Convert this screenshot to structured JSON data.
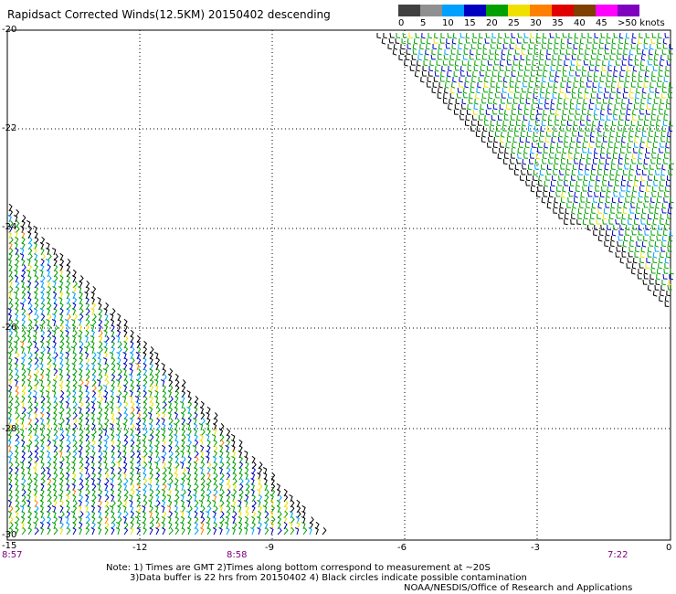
{
  "title": "Rapidsact Corrected Winds(12.5KM) 20150402 descending",
  "legend": {
    "labels": [
      "0",
      "5",
      "10",
      "15",
      "20",
      "25",
      "30",
      "35",
      "40",
      "45",
      ">50 knots"
    ],
    "colors": [
      "#404040",
      "#909090",
      "#00a0ff",
      "#0000c0",
      "#00a000",
      "#f0e000",
      "#ff8000",
      "#e00000",
      "#804000",
      "#ff00ff",
      "#8000c0"
    ]
  },
  "axes": {
    "lat_labels": [
      "-20",
      "-22",
      "-24",
      "-26",
      "-28",
      "-30"
    ],
    "lon_labels": [
      "-15",
      "-12",
      "-9",
      "-6",
      "-3",
      "0"
    ],
    "times": [
      "8:57",
      "8:58",
      "7:22"
    ]
  },
  "notes": [
    "Note: 1) Times are GMT 2)Times along bottom correspond to measurement at ~20S",
    "3)Data buffer is 22 hrs from 20150402 4) Black circles indicate possible contamination",
    "NOAA/NESDIS/Office of Research and Applications"
  ]
}
